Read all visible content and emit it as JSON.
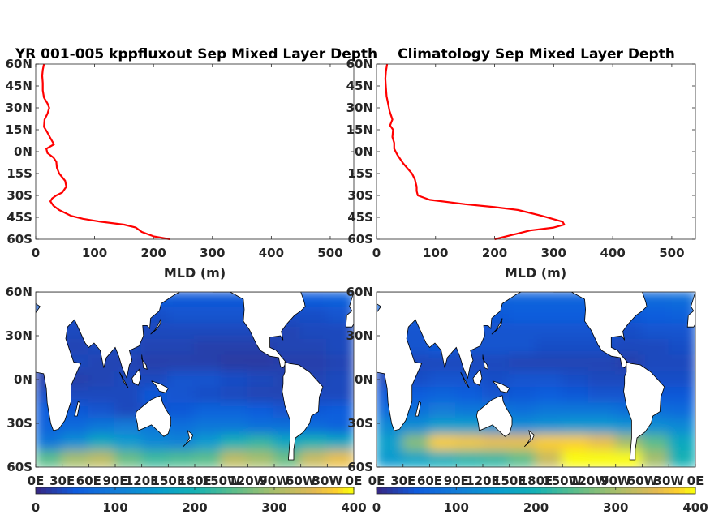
{
  "chart_data": [
    {
      "type": "line",
      "title": "YR 001-005 kppfluxout Sep Mixed Layer Depth",
      "xlabel": "MLD (m)",
      "ylabel": "",
      "xlim": [
        0,
        540
      ],
      "ylim": [
        -60,
        60
      ],
      "x_ticks": [
        "0",
        "100",
        "200",
        "300",
        "400",
        "500"
      ],
      "y_ticks": [
        "60N",
        "45N",
        "30N",
        "15N",
        "0N",
        "15S",
        "30S",
        "45S",
        "60S"
      ],
      "line_color": "#ff0000",
      "series": [
        {
          "x": [
            14,
            12,
            11,
            12,
            12,
            14,
            20,
            23,
            20,
            15,
            14,
            20,
            24,
            31,
            18,
            20,
            30,
            35,
            36,
            40,
            50,
            52,
            45,
            35,
            28,
            25,
            30,
            40,
            60,
            80,
            110,
            150,
            170,
            180,
            200,
            228
          ],
          "y": [
            60,
            56,
            52,
            47,
            42,
            37,
            33,
            30,
            26,
            22,
            17,
            13,
            10,
            5,
            2,
            -1,
            -4,
            -7,
            -11,
            -15,
            -20,
            -24,
            -28,
            -30,
            -32,
            -34,
            -37,
            -40,
            -44,
            -46,
            -48,
            -50,
            -52,
            -55,
            -58,
            -60
          ]
        }
      ]
    },
    {
      "type": "line",
      "title": "Climatology Sep Mixed Layer Depth",
      "xlabel": "MLD (m)",
      "ylabel": "",
      "xlim": [
        0,
        540
      ],
      "ylim": [
        -60,
        60
      ],
      "x_ticks": [
        "0",
        "100",
        "200",
        "300",
        "400",
        "500"
      ],
      "y_ticks": [
        "60N",
        "45N",
        "30N",
        "15N",
        "0N",
        "15S",
        "30S",
        "45S",
        "60S"
      ],
      "line_color": "#ff0000",
      "series": [
        {
          "x": [
            18,
            16,
            15,
            16,
            17,
            20,
            22,
            27,
            23,
            28,
            27,
            30,
            30,
            35,
            45,
            60,
            65,
            68,
            68,
            70,
            90,
            150,
            200,
            240,
            280,
            315,
            318,
            300,
            260,
            230,
            200
          ],
          "y": [
            60,
            55,
            50,
            44,
            38,
            32,
            28,
            22,
            18,
            15,
            10,
            6,
            2,
            -2,
            -8,
            -15,
            -19,
            -24,
            -27,
            -30,
            -33,
            -36,
            -38,
            -40,
            -44,
            -48,
            -50,
            -52,
            -54,
            -57,
            -60
          ]
        }
      ]
    },
    {
      "type": "heatmap",
      "title": "",
      "xlabel": "",
      "ylabel": "",
      "x_ticks": [
        "0E",
        "30E",
        "60E",
        "90E",
        "120E",
        "150E",
        "180E",
        "150W",
        "120W",
        "90W",
        "60W",
        "30W",
        "0E"
      ],
      "y_ticks": [
        "60N",
        "30N",
        "0N",
        "30S",
        "60S"
      ],
      "xlim": [
        0,
        360
      ],
      "ylim": [
        -60,
        60
      ],
      "colorbar_ticks": [
        "0",
        "100",
        "200",
        "300",
        "400"
      ],
      "clim": [
        0,
        400
      ],
      "colormap": "parula",
      "land_color": "#ffffff",
      "values": [
        [
          60,
          55,
          50,
          50,
          50,
          45,
          45,
          45,
          45,
          50,
          50,
          55
        ],
        [
          45,
          40,
          35,
          35,
          35,
          40,
          40,
          40,
          40,
          35,
          35,
          40
        ],
        [
          35,
          30,
          30,
          30,
          30,
          30,
          30,
          30,
          30,
          25,
          30,
          30
        ],
        [
          30,
          25,
          30,
          30,
          25,
          25,
          20,
          20,
          20,
          25,
          25,
          30
        ],
        [
          30,
          30,
          25,
          25,
          20,
          20,
          20,
          15,
          15,
          20,
          20,
          25
        ],
        [
          20,
          20,
          25,
          30,
          30,
          40,
          40,
          35,
          30,
          25,
          25,
          30
        ],
        [
          35,
          30,
          30,
          30,
          45,
          40,
          35,
          30,
          25,
          25,
          30,
          30
        ],
        [
          50,
          45,
          40,
          30,
          40,
          45,
          60,
          60,
          50,
          40,
          45,
          50
        ],
        [
          60,
          70,
          90,
          100,
          90,
          80,
          90,
          90,
          80,
          80,
          70,
          60
        ],
        [
          90,
          130,
          180,
          150,
          120,
          110,
          150,
          200,
          220,
          180,
          200,
          180
        ],
        [
          250,
          300,
          320,
          260,
          230,
          240,
          250,
          320,
          300,
          260,
          330,
          360
        ]
      ]
    },
    {
      "type": "heatmap",
      "title": "",
      "xlabel": "",
      "ylabel": "",
      "x_ticks": [
        "0E",
        "30E",
        "60E",
        "90E",
        "120E",
        "150E",
        "180E",
        "150W",
        "120W",
        "90W",
        "60W",
        "30W",
        "0E"
      ],
      "y_ticks": [
        "60N",
        "30N",
        "0N",
        "30S",
        "60S"
      ],
      "xlim": [
        0,
        360
      ],
      "ylim": [
        -60,
        60
      ],
      "colorbar_ticks": [
        "0",
        "100",
        "200",
        "300",
        "400"
      ],
      "clim": [
        0,
        400
      ],
      "colormap": "parula",
      "land_color": "#ffffff",
      "values": [
        [
          70,
          75,
          70,
          60,
          60,
          60,
          60,
          60,
          55,
          60,
          70,
          75
        ],
        [
          50,
          55,
          50,
          45,
          45,
          50,
          50,
          50,
          45,
          45,
          50,
          55
        ],
        [
          40,
          40,
          40,
          40,
          40,
          40,
          40,
          40,
          40,
          35,
          40,
          40
        ],
        [
          35,
          40,
          45,
          40,
          40,
          40,
          35,
          35,
          35,
          30,
          30,
          35
        ],
        [
          30,
          30,
          30,
          30,
          30,
          25,
          25,
          25,
          25,
          20,
          30,
          30
        ],
        [
          30,
          35,
          40,
          40,
          35,
          40,
          40,
          35,
          30,
          30,
          35,
          35
        ],
        [
          45,
          50,
          60,
          50,
          40,
          45,
          50,
          45,
          40,
          40,
          45,
          45
        ],
        [
          70,
          80,
          100,
          90,
          90,
          80,
          90,
          90,
          90,
          80,
          80,
          70
        ],
        [
          120,
          130,
          160,
          160,
          140,
          130,
          140,
          150,
          150,
          140,
          130,
          120
        ],
        [
          160,
          280,
          380,
          370,
          360,
          360,
          380,
          380,
          360,
          300,
          250,
          180
        ],
        [
          150,
          170,
          190,
          210,
          220,
          250,
          330,
          420,
          430,
          420,
          300,
          200
        ]
      ]
    }
  ]
}
